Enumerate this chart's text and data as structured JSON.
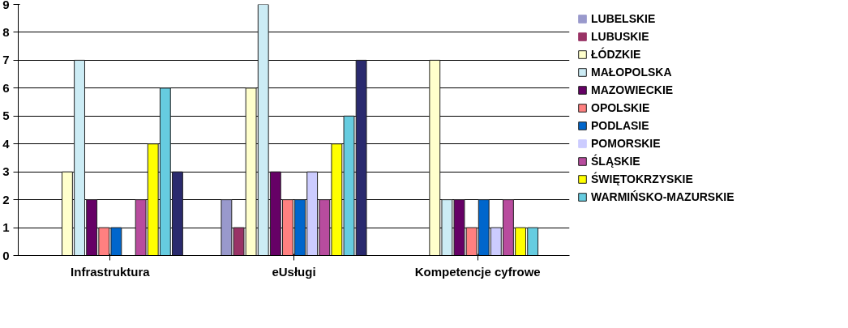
{
  "chart_data": {
    "type": "bar",
    "categories": [
      "Infrastruktura",
      "eUsługi",
      "Kompetencje cyfrowe"
    ],
    "series": [
      {
        "name": "LUBELSKIE",
        "color": "#9999cc",
        "values": [
          0,
          2,
          0
        ]
      },
      {
        "name": "LUBUSKIE",
        "color": "#993366",
        "values": [
          0,
          1,
          0
        ]
      },
      {
        "name": "ŁÓDZKIE",
        "color": "#ffffcc",
        "values": [
          3,
          6,
          7
        ]
      },
      {
        "name": "MAŁOPOLSKA",
        "color": "#ccecf5",
        "values": [
          7,
          9,
          2
        ]
      },
      {
        "name": "MAZOWIECKIE",
        "color": "#660066",
        "values": [
          2,
          3,
          2
        ]
      },
      {
        "name": "OPOLSKIE",
        "color": "#ff8080",
        "values": [
          1,
          2,
          1
        ]
      },
      {
        "name": "PODLASIE",
        "color": "#0066cc",
        "values": [
          1,
          2,
          2
        ]
      },
      {
        "name": "POMORSKIE",
        "color": "#ccccff",
        "values": [
          0,
          3,
          1
        ]
      },
      {
        "name": "ŚLĄSKIE",
        "color": "#b84c9e",
        "values": [
          2,
          2,
          2
        ]
      },
      {
        "name": "ŚWIĘTOKRZYSKIE",
        "color": "#ffff00",
        "values": [
          4,
          4,
          1
        ]
      },
      {
        "name": "WARMIŃSKO-MAZURSKIE",
        "color": "#66cce0",
        "values": [
          6,
          5,
          1
        ]
      },
      {
        "color": "#2a2a6e",
        "values": [
          3,
          7,
          0
        ]
      }
    ],
    "ylim": [
      0,
      9
    ],
    "yticks": [
      0,
      1,
      2,
      3,
      4,
      5,
      6,
      7,
      8,
      9
    ],
    "grid": "y",
    "legend": "right"
  }
}
